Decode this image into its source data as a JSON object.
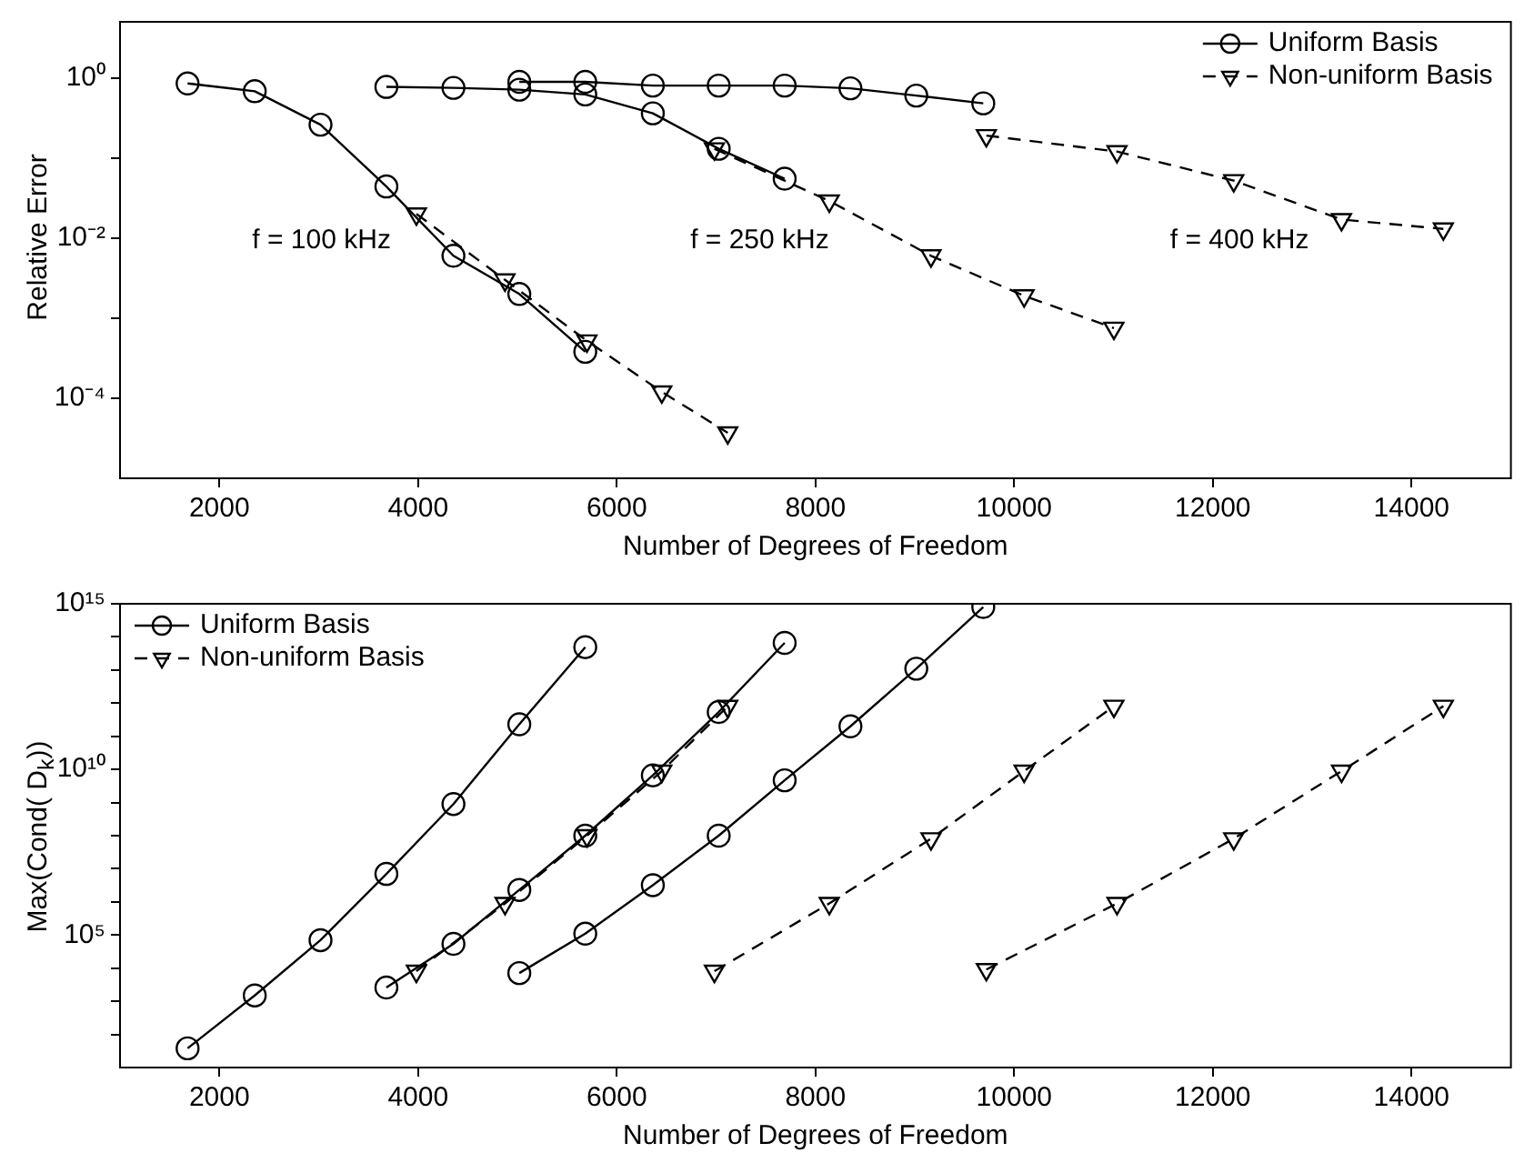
{
  "chart_data": [
    {
      "type": "line",
      "xlabel": "Number of Degrees of Freedom",
      "ylabel": "Relative Error",
      "log": "y",
      "legend": "top right",
      "xlim": [
        1000,
        15000
      ],
      "xticks": [
        2000,
        4000,
        6000,
        8000,
        10000,
        12000,
        14000
      ],
      "ylim": [
        1e-05,
        5
      ],
      "yticks": [
        {
          "value": 1,
          "label": "10⁰"
        },
        {
          "value": 0.1,
          "label": null
        },
        {
          "value": 0.01,
          "label": "10⁻²"
        },
        {
          "value": 0.001,
          "label": null
        },
        {
          "value": 0.0001,
          "label": "10⁻⁴"
        }
      ],
      "annotations": [
        "f = 100 kHz",
        "f = 250 kHz",
        "f = 400 kHz"
      ],
      "series": [
        {
          "name": "Uniform Basis",
          "color": "#000000",
          "marker": "circle",
          "line_style": "solid",
          "x": [
            1680,
            2356,
            3018,
            3681,
            4356,
            5019,
            5683
          ],
          "values": [
            0.85,
            0.68,
            0.26,
            0.044,
            0.006,
            0.002,
            0.00038
          ]
        },
        {
          "name": "Non-uniform Basis",
          "color": "#000000",
          "marker": "triangle",
          "line_style": "dashed",
          "x": [
            3983,
            4875,
            5700,
            6453,
            7117
          ],
          "values": [
            0.02,
            0.003,
            0.00052,
            0.00012,
            3.7e-05
          ]
        },
        {
          "color": "#000000",
          "marker": "circle",
          "line_style": "solid",
          "x": [
            3681,
            4356,
            5019,
            5683,
            6363,
            7026,
            7690
          ],
          "values": [
            0.77,
            0.75,
            0.71,
            0.62,
            0.36,
            0.13,
            0.055
          ]
        },
        {
          "color": "#000000",
          "marker": "triangle",
          "line_style": "dashed",
          "x": [
            6983,
            8139,
            9163,
            10100,
            11004
          ],
          "values": [
            0.13,
            0.029,
            0.006,
            0.0019,
            0.00075
          ]
        },
        {
          "color": "#000000",
          "marker": "circle",
          "line_style": "solid",
          "x": [
            5019,
            5683,
            6363,
            7026,
            7690,
            8352,
            9015,
            9689
          ],
          "values": [
            0.89,
            0.89,
            0.8,
            0.8,
            0.8,
            0.74,
            0.6,
            0.48
          ]
        },
        {
          "color": "#000000",
          "marker": "triangle",
          "line_style": "dashed",
          "x": [
            9720,
            11035,
            12210,
            13295,
            14320
          ],
          "values": [
            0.19,
            0.12,
            0.052,
            0.017,
            0.013
          ]
        }
      ]
    },
    {
      "type": "line",
      "xlabel": "Number of Degrees of Freedom",
      "ylabel": "Max(Cond( D$_{k}$))",
      "log": "y",
      "legend": "top left",
      "xlim": [
        1000,
        15000
      ],
      "xticks": [
        2000,
        4000,
        6000,
        8000,
        10000,
        12000,
        14000
      ],
      "ylim": [
        10,
        1000000000000000.0
      ],
      "yticks": [
        {
          "value": 1000000000000000.0,
          "label": "10¹⁵"
        },
        {
          "value": 100000000000000.0,
          "label": null
        },
        {
          "value": 10000000000000.0,
          "label": null
        },
        {
          "value": 1000000000000.0,
          "label": null
        },
        {
          "value": 100000000000.0,
          "label": null
        },
        {
          "value": 10000000000.0,
          "label": "10¹⁰"
        },
        {
          "value": 1000000000.0,
          "label": null
        },
        {
          "value": 100000000.0,
          "label": null
        },
        {
          "value": 10000000.0,
          "label": null
        },
        {
          "value": 1000000.0,
          "label": null
        },
        {
          "value": 100000.0,
          "label": "10⁵"
        },
        {
          "value": 10000.0,
          "label": null
        },
        {
          "value": 1000.0,
          "label": null
        },
        {
          "value": 100.0,
          "label": null
        }
      ],
      "series": [
        {
          "name": "Uniform Basis",
          "color": "#000000",
          "marker": "circle",
          "line_style": "solid",
          "x": [
            1680,
            2356,
            3018,
            3681,
            4356,
            5019,
            5683
          ],
          "values": [
            38,
            1500,
            70000,
            7000000,
            900000000,
            230000000000,
            49000000000000
          ]
        },
        {
          "name": "Non-uniform Basis",
          "color": "#000000",
          "marker": "triangle",
          "line_style": "dashed",
          "x": [
            3983,
            4875,
            5700,
            6453,
            7117
          ],
          "values": [
            8100,
            900000,
            100000000,
            8900000000,
            800000000000
          ]
        },
        {
          "color": "#000000",
          "marker": "circle",
          "line_style": "solid",
          "x": [
            3681,
            4356,
            5019,
            5683,
            6363,
            7026,
            7690
          ],
          "values": [
            2600,
            54000,
            2300000,
            100000000,
            6600000000,
            540000000000,
            66000000000000
          ]
        },
        {
          "color": "#000000",
          "marker": "triangle",
          "line_style": "dashed",
          "x": [
            6983,
            8139,
            9163,
            10100,
            11004
          ],
          "values": [
            8100,
            900000,
            81000000,
            8900000000,
            810000000000
          ]
        },
        {
          "color": "#000000",
          "marker": "circle",
          "line_style": "solid",
          "x": [
            5019,
            5683,
            6363,
            7026,
            7690,
            8352,
            9015,
            9689
          ],
          "values": [
            7100,
            110000,
            3200000,
            100000000,
            4700000000,
            200000000000,
            11000000000000,
            800000000000000
          ]
        },
        {
          "color": "#000000",
          "marker": "triangle",
          "line_style": "dashed",
          "x": [
            9720,
            11035,
            12210,
            13295,
            14320
          ],
          "values": [
            9100,
            900000,
            81000000,
            8900000000,
            810000000000
          ]
        }
      ]
    }
  ]
}
